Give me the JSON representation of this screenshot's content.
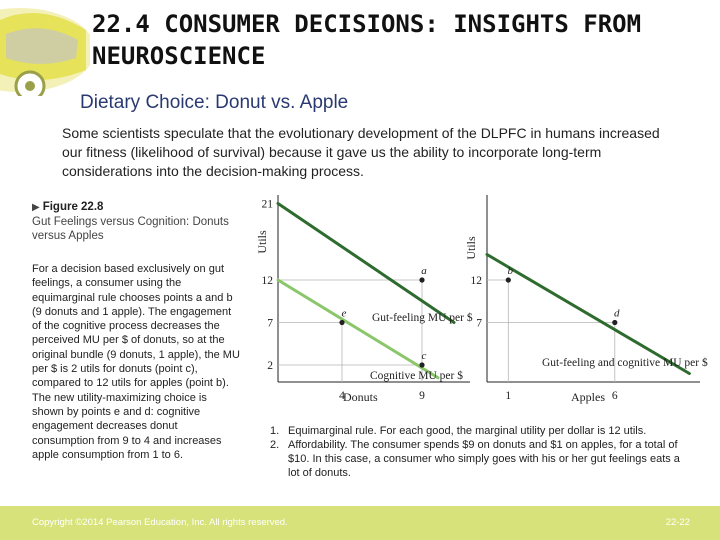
{
  "slide": {
    "title": "22.4 CONSUMER DECISIONS: INSIGHTS FROM NEUROSCIENCE",
    "subtitle": "Dietary Choice: Donut vs. Apple",
    "intro": "Some scientists speculate that the evolutionary development of the DLPFC in humans increased our fitness (likelihood of survival) because it gave us the ability to incorporate long-term considerations into the decision-making process."
  },
  "figure": {
    "number": "Figure 22.8",
    "caption": "Gut Feelings versus Cognition: Donuts versus Apples",
    "description": "For a decision based exclusively on gut feelings, a consumer using the equimarginal rule chooses points a and b (9 donuts and 1 apple). The engagement of the cognitive process decreases the perceived MU per $ of donuts, so at the original bundle (9 donuts, 1 apple), the MU per $ is 2 utils for donuts (point c), compared to 12 utils for apples (point b). The new utility-maximizing choice is shown by points e and d: cognitive engagement decreases donut consumption from 9 to 4 and increases apple consumption from 1 to 6."
  },
  "notes": [
    {
      "num": "1.",
      "text": "Equimarginal rule. For each good, the marginal utility per dollar is 12 utils."
    },
    {
      "num": "2.",
      "text": "Affordability. The consumer spends $9 on donuts and $1 on apples, for a total of $10. In this case, a consumer who simply goes with his or her gut feelings eats a lot of donuts."
    }
  ],
  "footer": {
    "copyright": "Copyright ©2014 Pearson Education, Inc. All rights reserved.",
    "page": "22-22"
  },
  "colors": {
    "gut_line": "#2e6b2e",
    "cognitive_line": "#8ac66a",
    "guide_line": "#b5b5b5",
    "footer_bg": "#d7e37a"
  },
  "chart_data": [
    {
      "type": "line",
      "panel": "donuts",
      "ylabel": "Utils",
      "xlabel": "Donuts",
      "y_ticks": [
        {
          "value": 21,
          "label": "21"
        },
        {
          "value": 12,
          "label": "12"
        },
        {
          "value": 7,
          "label": "7"
        },
        {
          "value": 2,
          "label": "2"
        }
      ],
      "x_ticks": [
        {
          "value": 4,
          "label": "4"
        },
        {
          "value": 9,
          "label": "9"
        }
      ],
      "series": [
        {
          "name": "Gut-feeling MU per $",
          "series_key": "gut",
          "x": [
            0,
            11
          ],
          "y": [
            21,
            7
          ]
        },
        {
          "name": "Cognitive MU per $",
          "series_key": "cognitive",
          "x": [
            0,
            10
          ],
          "y": [
            12,
            0.5
          ]
        }
      ],
      "points": [
        {
          "label": "a",
          "x": 9,
          "y": 12
        },
        {
          "label": "e",
          "x": 4,
          "y": 7
        },
        {
          "label": "c",
          "x": 9,
          "y": 2
        }
      ]
    },
    {
      "type": "line",
      "panel": "apples",
      "ylabel": "Utils",
      "xlabel": "Apples",
      "y_ticks": [
        {
          "value": 12,
          "label": "12"
        },
        {
          "value": 7,
          "label": "7"
        }
      ],
      "x_ticks": [
        {
          "value": 1,
          "label": "1"
        },
        {
          "value": 6,
          "label": "6"
        }
      ],
      "series": [
        {
          "name": "Gut-feeling and cognitive MU per $",
          "series_key": "gut",
          "x": [
            0,
            9.5
          ],
          "y": [
            15,
            1
          ]
        }
      ],
      "points": [
        {
          "label": "b",
          "x": 1,
          "y": 12
        },
        {
          "label": "d",
          "x": 6,
          "y": 7
        }
      ]
    }
  ]
}
